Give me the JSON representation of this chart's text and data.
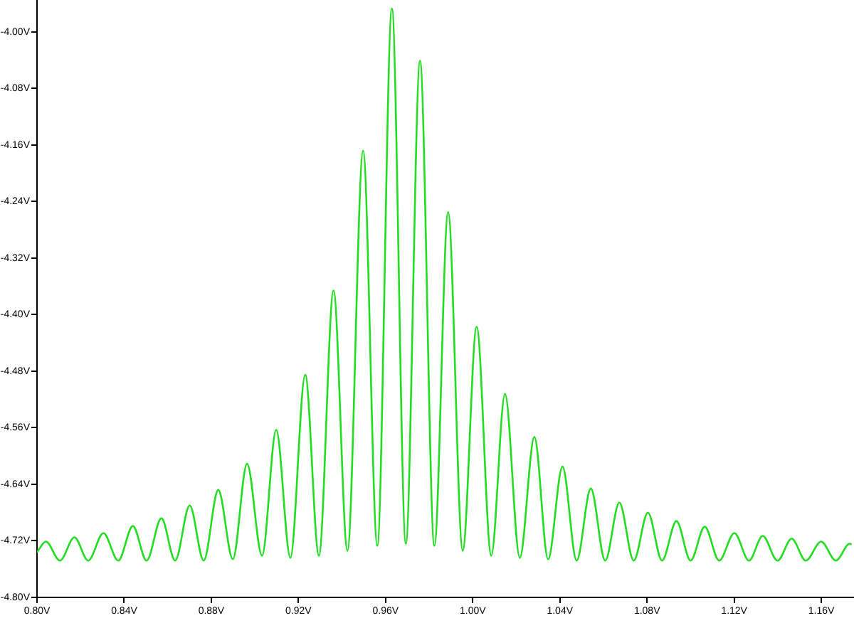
{
  "chart_data": {
    "type": "line",
    "marker": "none",
    "line_style": "solid",
    "grid": false,
    "legend": false,
    "xlim": [
      0.8,
      1.175
    ],
    "ylim": [
      -4.8,
      -3.955
    ],
    "xticks": [
      {
        "value": 0.8,
        "label": "0.80V"
      },
      {
        "value": 0.84,
        "label": "0.84V"
      },
      {
        "value": 0.88,
        "label": "0.88V"
      },
      {
        "value": 0.92,
        "label": "0.92V"
      },
      {
        "value": 0.96,
        "label": "0.96V"
      },
      {
        "value": 1.0,
        "label": "1.00V"
      },
      {
        "value": 1.04,
        "label": "1.04V"
      },
      {
        "value": 1.08,
        "label": "1.08V"
      },
      {
        "value": 1.12,
        "label": "1.12V"
      },
      {
        "value": 1.16,
        "label": "1.16V"
      }
    ],
    "yticks": [
      {
        "value": -4.8,
        "label": "-4.80V"
      },
      {
        "value": -4.72,
        "label": "-4.72V"
      },
      {
        "value": -4.64,
        "label": "-4.64V"
      },
      {
        "value": -4.56,
        "label": "-4.56V"
      },
      {
        "value": -4.48,
        "label": "-4.48V"
      },
      {
        "value": -4.4,
        "label": "-4.40V"
      },
      {
        "value": -4.32,
        "label": "-4.32V"
      },
      {
        "value": -4.24,
        "label": "-4.24V"
      },
      {
        "value": -4.16,
        "label": "-4.16V"
      },
      {
        "value": -4.08,
        "label": "-4.08V"
      },
      {
        "value": -4.0,
        "label": "-4.00V"
      }
    ],
    "series": [
      {
        "color": "#22dd22",
        "x": [
          0.8,
          0.8041,
          0.8105,
          0.8172,
          0.8235,
          0.8305,
          0.8373,
          0.844,
          0.8503,
          0.8571,
          0.8634,
          0.8701,
          0.8765,
          0.8832,
          0.8899,
          0.8964,
          0.9033,
          0.9098,
          0.9163,
          0.9231,
          0.9294,
          0.9361,
          0.9425,
          0.9497,
          0.9562,
          0.9629,
          0.9693,
          0.9758,
          0.9824,
          0.9887,
          0.9954,
          1.0018,
          1.0085,
          1.0148,
          1.0216,
          1.0283,
          1.0346,
          1.0412,
          1.0477,
          1.0542,
          1.0608,
          1.0673,
          1.0739,
          1.0804,
          1.0869,
          1.0935,
          1.1,
          1.1065,
          1.1131,
          1.1201,
          1.1268,
          1.1331,
          1.1399,
          1.1464,
          1.1529,
          1.1599,
          1.1667,
          1.173,
          1.1739
        ],
        "values": [
          -4.736,
          -4.721,
          -4.748,
          -4.715,
          -4.748,
          -4.709,
          -4.748,
          -4.699,
          -4.748,
          -4.688,
          -4.748,
          -4.67,
          -4.748,
          -4.648,
          -4.746,
          -4.611,
          -4.741,
          -4.563,
          -4.744,
          -4.485,
          -4.741,
          -4.366,
          -4.734,
          -4.168,
          -4.727,
          -3.967,
          -4.724,
          -4.041,
          -4.727,
          -4.255,
          -4.734,
          -4.417,
          -4.741,
          -4.512,
          -4.744,
          -4.573,
          -4.746,
          -4.615,
          -4.748,
          -4.646,
          -4.748,
          -4.666,
          -4.748,
          -4.68,
          -4.748,
          -4.692,
          -4.748,
          -4.7,
          -4.748,
          -4.709,
          -4.748,
          -4.713,
          -4.748,
          -4.717,
          -4.748,
          -4.721,
          -4.748,
          -4.724,
          -4.725
        ]
      }
    ]
  }
}
